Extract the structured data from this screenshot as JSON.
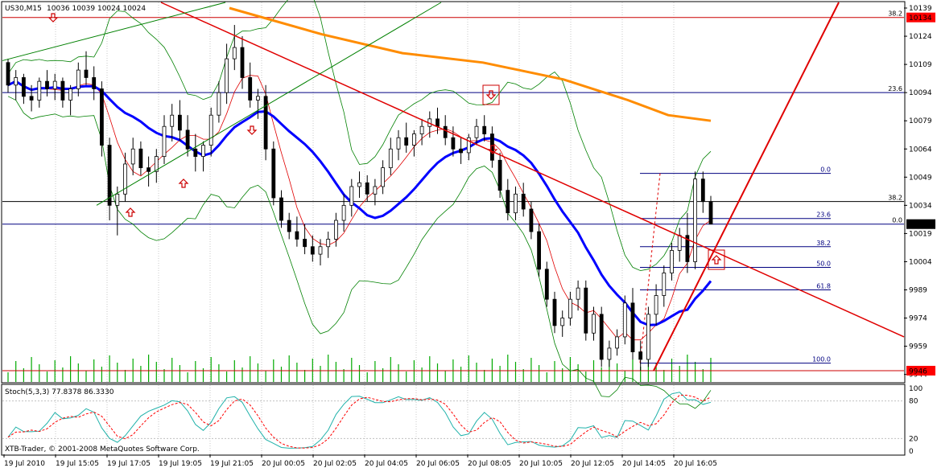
{
  "header": {
    "symbol_timeframe": "US30,M15",
    "ohlc": "10036 10039 10024 10024"
  },
  "watermark": "XTB-Trader, © 2001-2008 MetaQuotes Software Corp.",
  "stoch_label": "Stoch(5,3,3) 77.8378 86.3330",
  "colors": {
    "bull": "#ffffff",
    "bear": "#000000",
    "ma_blue": "#0000ff",
    "ma_orange": "#ff8c00",
    "trend_red": "#e00000",
    "channel_green": "#008000",
    "bollinger": "#008000",
    "fib_blue": "#000080",
    "stoch_main": "#20b2aa",
    "stoch_signal": "#ff0000",
    "volume": "#00aa00",
    "price_badge": "#ff0000",
    "current_badge": "#000000"
  },
  "chart_data": {
    "type": "candlestick",
    "symbol": "US30",
    "timeframe": "M15",
    "ylim": [
      9940,
      10142
    ],
    "y_ticks": [
      10139,
      10124,
      10109,
      10094,
      10079,
      10064,
      10049,
      10034,
      10019,
      10004,
      9989,
      9974,
      9959,
      9944
    ],
    "x_ticks": [
      "19 Jul 2010",
      "19 Jul 15:05",
      "19 Jul 17:05",
      "19 Jul 19:05",
      "19 Jul 21:05",
      "20 Jul 00:05",
      "20 Jul 02:05",
      "20 Jul 04:05",
      "20 Jul 06:05",
      "20 Jul 08:05",
      "20 Jul 10:05",
      "20 Jul 12:05",
      "20 Jul 14:05",
      "20 Jul 16:05"
    ],
    "price_badges": [
      {
        "value": "10134",
        "price": 10134,
        "color": "red"
      },
      {
        "value": "10024",
        "price": 10024,
        "color": "black"
      },
      {
        "value": "9946",
        "price": 9946,
        "color": "red"
      }
    ],
    "horizontal_levels": [
      {
        "price": 10134,
        "label": "38.2",
        "color": "#cc0000"
      },
      {
        "price": 10094,
        "label": "23.6",
        "color": "#000080"
      },
      {
        "price": 10036,
        "label": "38.2",
        "color": "#000000"
      },
      {
        "price": 10024,
        "label": "0.0",
        "color": "#000080"
      },
      {
        "price": 9946,
        "label": "",
        "color": "#cc0000"
      }
    ],
    "fib_retracement": [
      {
        "label": "0.0",
        "price": 10051
      },
      {
        "label": "23.6",
        "price": 10027
      },
      {
        "label": "38.2",
        "price": 10012
      },
      {
        "label": "50.0",
        "price": 10001
      },
      {
        "label": "61.8",
        "price": 9989
      },
      {
        "label": "100.0",
        "price": 9950
      }
    ],
    "candles": [
      [
        10110,
        10112,
        10094,
        10098
      ],
      [
        10098,
        10106,
        10090,
        10102
      ],
      [
        10102,
        10104,
        10088,
        10092
      ],
      [
        10092,
        10098,
        10084,
        10090
      ],
      [
        10090,
        10102,
        10086,
        10100
      ],
      [
        10100,
        10106,
        10092,
        10096
      ],
      [
        10096,
        10104,
        10090,
        10100
      ],
      [
        10100,
        10102,
        10086,
        10090
      ],
      [
        10090,
        10098,
        10082,
        10096
      ],
      [
        10096,
        10110,
        10092,
        10106
      ],
      [
        10106,
        10116,
        10098,
        10102
      ],
      [
        10102,
        10108,
        10090,
        10096
      ],
      [
        10096,
        10100,
        10060,
        10066
      ],
      [
        10066,
        10070,
        10026,
        10034
      ],
      [
        10034,
        10044,
        10018,
        10040
      ],
      [
        10040,
        10062,
        10036,
        10056
      ],
      [
        10056,
        10070,
        10050,
        10064
      ],
      [
        10064,
        10068,
        10050,
        10054
      ],
      [
        10054,
        10060,
        10044,
        10052
      ],
      [
        10052,
        10064,
        10046,
        10060
      ],
      [
        10060,
        10082,
        10056,
        10076
      ],
      [
        10076,
        10088,
        10068,
        10082
      ],
      [
        10082,
        10090,
        10068,
        10074
      ],
      [
        10074,
        10082,
        10060,
        10064
      ],
      [
        10064,
        10072,
        10052,
        10060
      ],
      [
        10060,
        10068,
        10052,
        10066
      ],
      [
        10066,
        10086,
        10060,
        10082
      ],
      [
        10082,
        10100,
        10078,
        10094
      ],
      [
        10094,
        10120,
        10088,
        10112
      ],
      [
        10112,
        10130,
        10106,
        10118
      ],
      [
        10118,
        10124,
        10096,
        10102
      ],
      [
        10102,
        10110,
        10086,
        10090
      ],
      [
        10090,
        10096,
        10080,
        10092
      ],
      [
        10092,
        10098,
        10058,
        10064
      ],
      [
        10064,
        10068,
        10034,
        10038
      ],
      [
        10038,
        10042,
        10022,
        10026
      ],
      [
        10026,
        10030,
        10016,
        10020
      ],
      [
        10020,
        10028,
        10012,
        10016
      ],
      [
        10016,
        10024,
        10008,
        10012
      ],
      [
        10012,
        10018,
        10004,
        10008
      ],
      [
        10008,
        10016,
        10002,
        10012
      ],
      [
        10012,
        10020,
        10006,
        10016
      ],
      [
        10016,
        10030,
        10012,
        10026
      ],
      [
        10026,
        10040,
        10020,
        10034
      ],
      [
        10034,
        10048,
        10028,
        10044
      ],
      [
        10044,
        10052,
        10038,
        10046
      ],
      [
        10046,
        10050,
        10036,
        10040
      ],
      [
        10040,
        10048,
        10034,
        10044
      ],
      [
        10044,
        10058,
        10040,
        10054
      ],
      [
        10054,
        10070,
        10050,
        10064
      ],
      [
        10064,
        10074,
        10058,
        10070
      ],
      [
        10070,
        10078,
        10062,
        10066
      ],
      [
        10066,
        10074,
        10060,
        10072
      ],
      [
        10072,
        10080,
        10066,
        10076
      ],
      [
        10076,
        10084,
        10070,
        10080
      ],
      [
        10080,
        10086,
        10072,
        10076
      ],
      [
        10076,
        10082,
        10066,
        10070
      ],
      [
        10070,
        10076,
        10060,
        10064
      ],
      [
        10064,
        10070,
        10056,
        10062
      ],
      [
        10062,
        10072,
        10058,
        10070
      ],
      [
        10070,
        10080,
        10066,
        10076
      ],
      [
        10076,
        10082,
        10068,
        10072
      ],
      [
        10072,
        10076,
        10054,
        10058
      ],
      [
        10058,
        10062,
        10038,
        10042
      ],
      [
        10042,
        10048,
        10026,
        10030
      ],
      [
        10030,
        10044,
        10026,
        10040
      ],
      [
        10040,
        10046,
        10028,
        10032
      ],
      [
        10032,
        10036,
        10016,
        10020
      ],
      [
        10020,
        10024,
        9996,
        10000
      ],
      [
        10000,
        10004,
        9980,
        9984
      ],
      [
        9984,
        9988,
        9966,
        9970
      ],
      [
        9970,
        9978,
        9964,
        9974
      ],
      [
        9974,
        9988,
        9970,
        9984
      ],
      [
        9984,
        9994,
        9978,
        9990
      ],
      [
        9990,
        9994,
        9962,
        9966
      ],
      [
        9966,
        9980,
        9962,
        9976
      ],
      [
        9976,
        9980,
        9948,
        9952
      ],
      [
        9952,
        9962,
        9948,
        9958
      ],
      [
        9958,
        9968,
        9954,
        9964
      ],
      [
        9964,
        9986,
        9960,
        9982
      ],
      [
        9982,
        9990,
        9952,
        9956
      ],
      [
        9956,
        9962,
        9946,
        9952
      ],
      [
        9952,
        9980,
        9948,
        9976
      ],
      [
        9976,
        9992,
        9970,
        9986
      ],
      [
        9986,
        10002,
        9980,
        9998
      ],
      [
        9998,
        10014,
        9994,
        10010
      ],
      [
        10010,
        10022,
        10004,
        10018
      ],
      [
        10018,
        10030,
        9998,
        10004
      ],
      [
        10004,
        10052,
        10000,
        10048
      ],
      [
        10048,
        10052,
        10030,
        10036
      ],
      [
        10036,
        10039,
        10024,
        10024
      ]
    ],
    "stochastic": {
      "label": "Stoch(5,3,3)",
      "main": 77.8378,
      "signal": 86.333,
      "y_ticks": [
        100,
        80,
        20,
        0
      ]
    }
  }
}
